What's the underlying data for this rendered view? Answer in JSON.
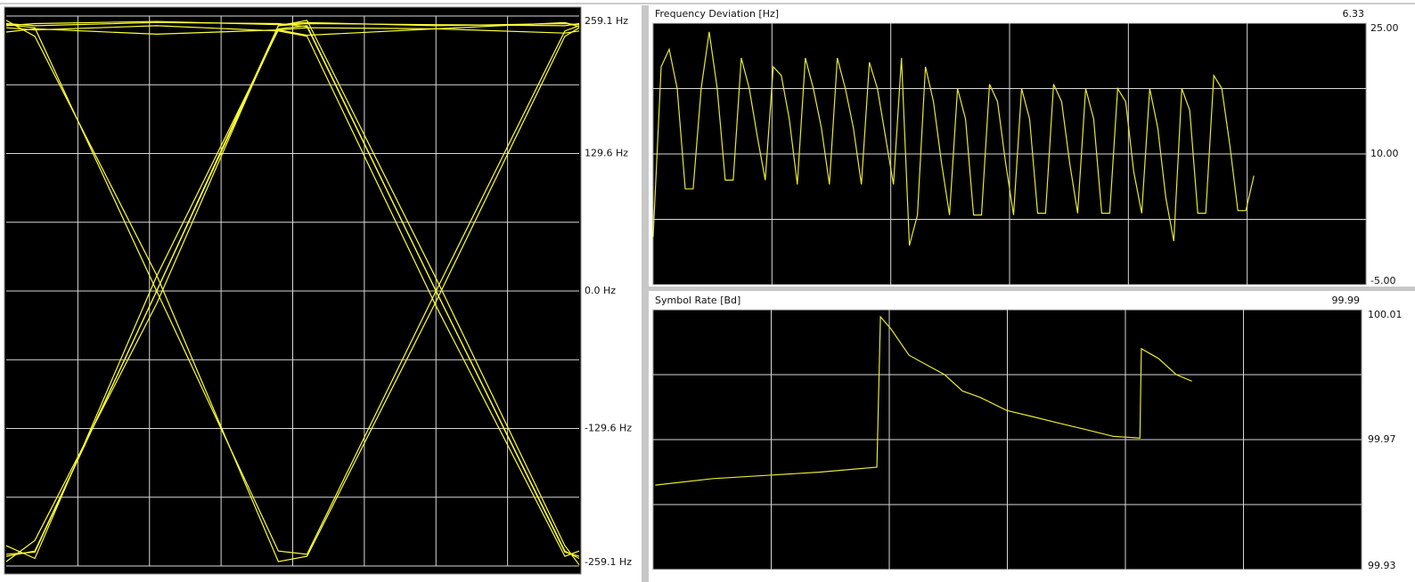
{
  "chart_data": [
    {
      "type": "line",
      "color": "#ffff33",
      "x": [
        0,
        0.4,
        2.1,
        3.8,
        4.2,
        6.0,
        7.8,
        8
      ],
      "xlim": [
        0,
        8
      ],
      "ylim": [
        -259.1,
        259.1
      ],
      "yticks": [
        {
          "value": 259.1,
          "label": "259.1 Hz"
        },
        {
          "value": 129.6,
          "label": "129.6 Hz"
        },
        {
          "value": 0,
          "label": "0.0 Hz"
        },
        {
          "value": -129.6,
          "label": "-129.6 Hz"
        },
        {
          "value": -259.1,
          "label": "-259.1 Hz"
        }
      ],
      "grid": true,
      "series": [
        {
          "values": [
            250,
            252,
            254,
            251,
            253,
            250,
            252,
            251
          ]
        },
        {
          "values": [
            244,
            247,
            242,
            246,
            241,
            247,
            243,
            245
          ]
        },
        {
          "values": [
            251,
            248,
            0,
            -245,
            -248,
            0,
            245,
            250
          ]
        },
        {
          "values": [
            255,
            240,
            15,
            -255,
            -250,
            -10,
            240,
            248
          ]
        },
        {
          "values": [
            -250,
            -245,
            0,
            247,
            250,
            0,
            -246,
            -250
          ]
        },
        {
          "values": [
            -255,
            -235,
            -12,
            250,
            255,
            12,
            -240,
            -258
          ]
        },
        {
          "values": [
            252,
            250,
            253,
            252,
            249,
            0,
            -245,
            -252
          ]
        },
        {
          "values": [
            248,
            246,
            250,
            245,
            240,
            -14,
            -250,
            -245
          ]
        },
        {
          "values": [
            -248,
            -246,
            0,
            250,
            252,
            251,
            250,
            252
          ]
        },
        {
          "values": [
            -240,
            -252,
            14,
            246,
            248,
            247,
            253,
            249
          ]
        }
      ]
    },
    {
      "type": "line",
      "title": "Frequency Deviation [Hz]",
      "readout": 6.33,
      "color": "#e8e830",
      "xlim": [
        0,
        89
      ],
      "ylim": [
        -5,
        25
      ],
      "yticks": [
        {
          "value": 25,
          "label": "25.00"
        },
        {
          "value": 10,
          "label": "10.00"
        },
        {
          "value": -5,
          "label": "-5.00"
        }
      ],
      "grid": true,
      "values": [
        0.5,
        20,
        22,
        17.5,
        6,
        6,
        17.5,
        24,
        17.5,
        7,
        7,
        21,
        17.5,
        12,
        7,
        20,
        19,
        14,
        6.5,
        21,
        17.5,
        13,
        6.5,
        21,
        17.5,
        13,
        6.5,
        20.5,
        17.5,
        12,
        6.5,
        21,
        -0.5,
        3,
        20,
        16,
        9,
        3,
        17.5,
        14,
        3,
        3,
        18,
        16,
        9,
        3,
        17.5,
        14,
        3.2,
        3.2,
        18,
        16,
        9,
        3.2,
        17.5,
        14,
        3.2,
        3.2,
        17.5,
        16,
        8,
        3.2,
        17.5,
        13,
        5,
        0,
        17.5,
        15,
        3.2,
        3.2,
        19,
        17.5,
        11,
        3.5,
        3.5,
        7.5
      ]
    },
    {
      "type": "line",
      "title": "Symbol Rate [Bd]",
      "readout": 99.99,
      "color": "#e8e830",
      "x": [
        0.3,
        8.4,
        15.9,
        23.4,
        31.4,
        31.9,
        33.4,
        35.9,
        38.4,
        40.9,
        43.4,
        45.9,
        49.6,
        53.4,
        57.1,
        60.9,
        64.6,
        68.3,
        68.5,
        70.9,
        73.4,
        75.6
      ],
      "xlim": [
        0,
        99.4
      ],
      "ylim": [
        99.93,
        100.01
      ],
      "yticks": [
        100.01,
        99.97,
        99.93
      ],
      "grid": true,
      "values": [
        99.956,
        99.958,
        99.959,
        99.96,
        99.9615,
        100.0078,
        100.004,
        99.996,
        99.993,
        99.99,
        99.985,
        99.983,
        99.979,
        99.977,
        99.975,
        99.973,
        99.971,
        99.9705,
        99.998,
        99.995,
        99.99,
        99.988
      ]
    }
  ]
}
